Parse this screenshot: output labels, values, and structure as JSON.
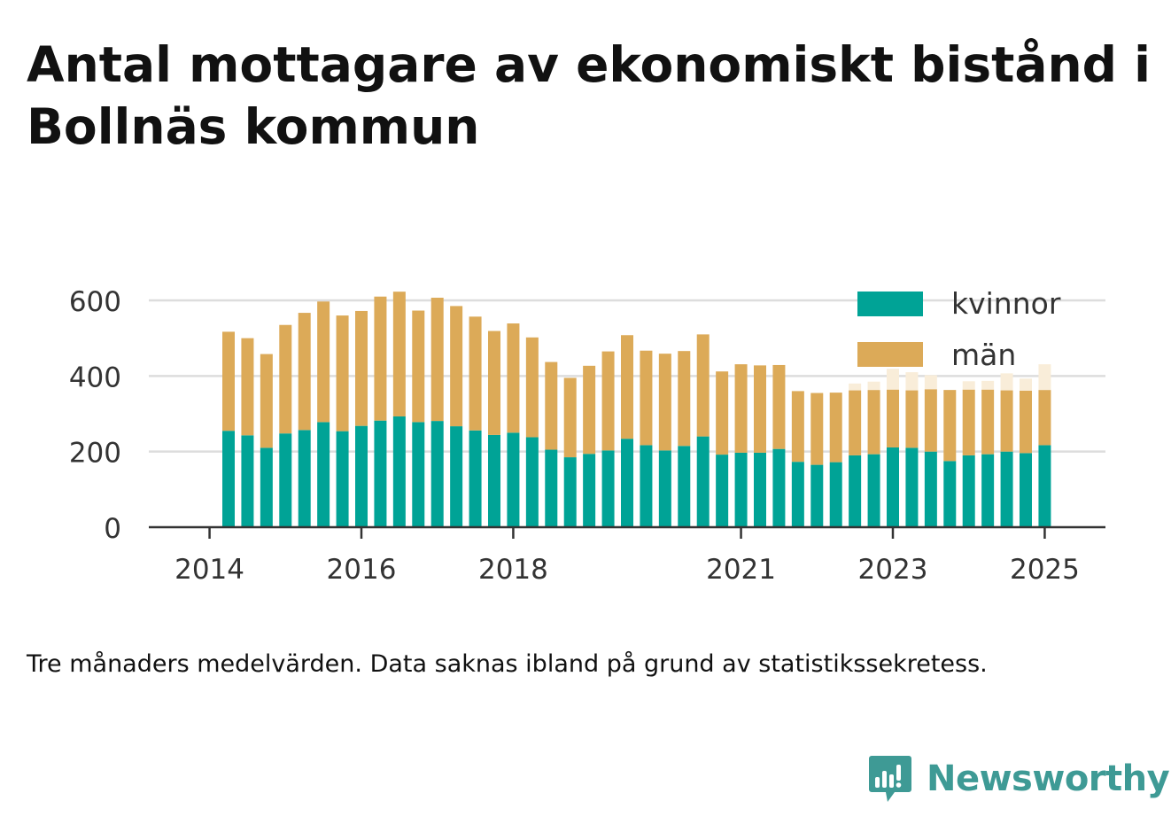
{
  "title": "Antal mottagare av ekonomiskt bistånd i Bollnäs kommun",
  "caption": "Tre månaders medelvärden. Data saknas ibland på grund av statistikssekretess.",
  "brand": {
    "name": "Newsworthy",
    "icon": "newsworthy-logo-icon",
    "color": "#3e9a95"
  },
  "colors": {
    "kvinnor": "#00a396",
    "man": "#dcaa58",
    "man_missing": "#f9edd9",
    "grid": "#dddddd",
    "axis": "#333333"
  },
  "chart_data": {
    "type": "bar",
    "stacked": true,
    "x_ticks": [
      "2014",
      "2016",
      "2018",
      "2021",
      "2023",
      "2025"
    ],
    "x_tick_positions": [
      2014.0,
      2016.0,
      2018.0,
      2021.0,
      2023.0,
      2025.0
    ],
    "xlim": [
      2013.2,
      2025.8
    ],
    "y_ticks": [
      "0",
      "200",
      "400",
      "600"
    ],
    "ylim": [
      0,
      630
    ],
    "grid": true,
    "legend_position": "top-right",
    "x": [
      2014.25,
      2014.5,
      2014.75,
      2015.0,
      2015.25,
      2015.5,
      2015.75,
      2016.0,
      2016.25,
      2016.5,
      2016.75,
      2017.0,
      2017.25,
      2017.5,
      2017.75,
      2018.0,
      2018.25,
      2018.5,
      2018.75,
      2019.0,
      2019.25,
      2019.5,
      2019.75,
      2020.0,
      2020.25,
      2020.5,
      2020.75,
      2021.0,
      2021.25,
      2021.5,
      2021.75,
      2022.0,
      2022.25,
      2022.5,
      2022.75,
      2023.0,
      2023.25,
      2023.5,
      2023.75,
      2024.0,
      2024.25,
      2024.5,
      2024.75,
      2025.0
    ],
    "series": [
      {
        "name": "kvinnor",
        "values": [
          255,
          243,
          210,
          248,
          257,
          278,
          254,
          268,
          282,
          293,
          278,
          281,
          267,
          256,
          244,
          250,
          238,
          205,
          185,
          194,
          203,
          234,
          217,
          203,
          215,
          240,
          192,
          197,
          197,
          207,
          173,
          165,
          172,
          190,
          193,
          211,
          210,
          200,
          175,
          190,
          193,
          200,
          196,
          217
        ]
      },
      {
        "name": "män",
        "values": [
          262,
          257,
          248,
          287,
          310,
          319,
          306,
          304,
          328,
          330,
          295,
          326,
          318,
          301,
          275,
          289,
          264,
          232,
          210,
          233,
          262,
          274,
          250,
          256,
          251,
          270,
          220,
          234,
          231,
          222,
          187,
          190,
          184,
          172,
          170,
          153,
          152,
          165,
          188,
          174,
          171,
          162,
          165,
          146
        ],
        "missing_values": [
          0,
          0,
          0,
          0,
          0,
          0,
          0,
          0,
          0,
          0,
          0,
          0,
          0,
          0,
          0,
          0,
          0,
          0,
          0,
          0,
          0,
          0,
          0,
          0,
          0,
          0,
          0,
          0,
          0,
          0,
          0,
          0,
          0,
          18,
          22,
          55,
          48,
          37,
          0,
          22,
          23,
          45,
          32,
          68
        ]
      }
    ]
  }
}
